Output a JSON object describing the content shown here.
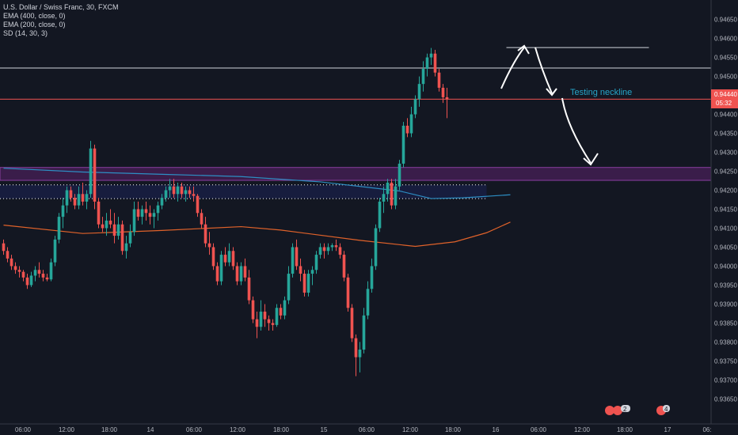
{
  "legend": {
    "symbol": "U.S. Dollar / Swiss Franc, 30, FXCM",
    "ind1": "EMA (400, close, 0)",
    "ind2": "EMA (200, close, 0)",
    "ind3": "SD (14, 30, 3)"
  },
  "colors": {
    "background": "#131722",
    "up": "#26a69a",
    "down": "#ef5350",
    "ema400": "#2d8fc4",
    "ema200": "#e0622a",
    "zone": "#3a1d4a",
    "zone_border": "#8a3fa0",
    "annotation": "#26a6c9"
  },
  "annotation": "Testing neckline",
  "price_label": "0.94440",
  "countdown": "05:32",
  "chart_data": {
    "type": "candlestick",
    "ylim": [
      0.9363,
      0.9467
    ],
    "y_ticks": [
      "0.94650",
      "0.94600",
      "0.94550",
      "0.94500",
      "0.94450",
      "0.94400",
      "0.94350",
      "0.94300",
      "0.94250",
      "0.94200",
      "0.94150",
      "0.94100",
      "0.94050",
      "0.94000",
      "0.93950",
      "0.93900",
      "0.93850",
      "0.93800",
      "0.93750",
      "0.93700",
      "0.93650"
    ],
    "x_ticks": [
      "06:00",
      "12:00",
      "18:00",
      "14",
      "06:00",
      "12:00",
      "18:00",
      "15",
      "06:00",
      "12:00",
      "18:00",
      "16",
      "06:00",
      "12:00",
      "18:00",
      "17",
      "06:"
    ],
    "current_price": 0.9444,
    "horizontal_lines": [
      {
        "y": 0.94576,
        "color": "#d1d4dc",
        "from_bar": 127,
        "to_bar": 163
      },
      {
        "y": 0.94522,
        "color": "#d1d4dc",
        "from_bar": 0,
        "to_bar": 200
      },
      {
        "y": 0.9444,
        "color": "#ef5350",
        "from_bar": 0,
        "to_bar": 200
      }
    ],
    "zone": {
      "y_top": 0.9426,
      "y_bottom": 0.94226
    },
    "dotted_box": {
      "y_top": 0.94214,
      "y_bottom": 0.94178,
      "from_bar": 0,
      "to_bar": 122
    },
    "ema400": [
      [
        0,
        0.94258
      ],
      [
        20,
        0.94248
      ],
      [
        40,
        0.94242
      ],
      [
        60,
        0.94236
      ],
      [
        80,
        0.94222
      ],
      [
        100,
        0.94198
      ],
      [
        108,
        0.94178
      ],
      [
        116,
        0.9418
      ],
      [
        128,
        0.94188
      ]
    ],
    "ema200": [
      [
        0,
        0.94108
      ],
      [
        20,
        0.94086
      ],
      [
        40,
        0.94094
      ],
      [
        60,
        0.94104
      ],
      [
        70,
        0.94095
      ],
      [
        90,
        0.94068
      ],
      [
        104,
        0.94052
      ],
      [
        114,
        0.94064
      ],
      [
        122,
        0.94088
      ],
      [
        128,
        0.94116
      ]
    ],
    "candles": [
      [
        0.9406,
        0.9407,
        0.9403,
        0.9404
      ],
      [
        0.9404,
        0.9405,
        0.9401,
        0.9402
      ],
      [
        0.9402,
        0.9403,
        0.9399,
        0.94
      ],
      [
        0.94,
        0.9401,
        0.9398,
        0.9399
      ],
      [
        0.9399,
        0.94,
        0.9397,
        0.93985
      ],
      [
        0.93985,
        0.9399,
        0.9396,
        0.9397
      ],
      [
        0.9397,
        0.9398,
        0.9394,
        0.9395
      ],
      [
        0.9395,
        0.93985,
        0.93945,
        0.93975
      ],
      [
        0.93975,
        0.94,
        0.9396,
        0.9399
      ],
      [
        0.9399,
        0.9401,
        0.9397,
        0.9398
      ],
      [
        0.9398,
        0.9399,
        0.9396,
        0.9397
      ],
      [
        0.9397,
        0.9398,
        0.9396,
        0.93965
      ],
      [
        0.93965,
        0.9402,
        0.9396,
        0.9401
      ],
      [
        0.9401,
        0.9408,
        0.94,
        0.9407
      ],
      [
        0.9407,
        0.9414,
        0.9406,
        0.9413
      ],
      [
        0.9413,
        0.9418,
        0.941,
        0.9416
      ],
      [
        0.9416,
        0.9421,
        0.9414,
        0.942
      ],
      [
        0.942,
        0.9421,
        0.9417,
        0.9418
      ],
      [
        0.9418,
        0.9419,
        0.9415,
        0.9416
      ],
      [
        0.9416,
        0.9421,
        0.9415,
        0.9419
      ],
      [
        0.9419,
        0.9422,
        0.9416,
        0.9417
      ],
      [
        0.9417,
        0.942,
        0.9415,
        0.9419
      ],
      [
        0.9419,
        0.9433,
        0.9418,
        0.9431
      ],
      [
        0.9431,
        0.9432,
        0.9415,
        0.9417
      ],
      [
        0.9417,
        0.9418,
        0.941,
        0.9411
      ],
      [
        0.9411,
        0.9413,
        0.9409,
        0.941
      ],
      [
        0.941,
        0.9414,
        0.9408,
        0.9412
      ],
      [
        0.9412,
        0.9415,
        0.941,
        0.9411
      ],
      [
        0.9411,
        0.9414,
        0.9406,
        0.9408
      ],
      [
        0.9408,
        0.9413,
        0.9407,
        0.9411
      ],
      [
        0.9411,
        0.9412,
        0.9403,
        0.9404
      ],
      [
        0.9404,
        0.9408,
        0.9402,
        0.9406
      ],
      [
        0.9406,
        0.9411,
        0.9405,
        0.9409
      ],
      [
        0.9409,
        0.9417,
        0.9408,
        0.9415
      ],
      [
        0.9415,
        0.9417,
        0.9412,
        0.9413
      ],
      [
        0.9413,
        0.9416,
        0.9411,
        0.9415
      ],
      [
        0.9415,
        0.9417,
        0.9412,
        0.9414
      ],
      [
        0.9414,
        0.9416,
        0.9411,
        0.9413
      ],
      [
        0.9413,
        0.9415,
        0.941,
        0.9414
      ],
      [
        0.9414,
        0.9417,
        0.9412,
        0.9416
      ],
      [
        0.9416,
        0.9419,
        0.9415,
        0.9418
      ],
      [
        0.9418,
        0.9421,
        0.9417,
        0.942
      ],
      [
        0.942,
        0.9423,
        0.9418,
        0.9421
      ],
      [
        0.9421,
        0.9423,
        0.9418,
        0.9419
      ],
      [
        0.9419,
        0.9422,
        0.9417,
        0.9421
      ],
      [
        0.9421,
        0.9422,
        0.9418,
        0.9419
      ],
      [
        0.9419,
        0.9421,
        0.9417,
        0.942
      ],
      [
        0.942,
        0.9421,
        0.9418,
        0.9419
      ],
      [
        0.9419,
        0.9421,
        0.9417,
        0.94185
      ],
      [
        0.94185,
        0.9419,
        0.9413,
        0.9414
      ],
      [
        0.9414,
        0.9415,
        0.941,
        0.9411
      ],
      [
        0.9411,
        0.9413,
        0.9405,
        0.9406
      ],
      [
        0.9406,
        0.9409,
        0.9403,
        0.9405
      ],
      [
        0.9405,
        0.9406,
        0.9399,
        0.94
      ],
      [
        0.94,
        0.9401,
        0.9395,
        0.9396
      ],
      [
        0.9396,
        0.9404,
        0.9395,
        0.9403
      ],
      [
        0.9403,
        0.9405,
        0.94,
        0.9401
      ],
      [
        0.9401,
        0.9406,
        0.94,
        0.9404
      ],
      [
        0.9404,
        0.9405,
        0.9399,
        0.94
      ],
      [
        0.94,
        0.9401,
        0.9395,
        0.9396
      ],
      [
        0.9396,
        0.9401,
        0.9395,
        0.94
      ],
      [
        0.94,
        0.9402,
        0.9396,
        0.9397
      ],
      [
        0.9397,
        0.9399,
        0.939,
        0.9391
      ],
      [
        0.9391,
        0.9392,
        0.9385,
        0.9386
      ],
      [
        0.9386,
        0.9388,
        0.9381,
        0.9384
      ],
      [
        0.9384,
        0.9391,
        0.9383,
        0.9388
      ],
      [
        0.9388,
        0.939,
        0.9384,
        0.9386
      ],
      [
        0.9386,
        0.9387,
        0.9383,
        0.9385
      ],
      [
        0.9385,
        0.9386,
        0.9383,
        0.93845
      ],
      [
        0.93845,
        0.939,
        0.9384,
        0.9389
      ],
      [
        0.9389,
        0.939,
        0.9386,
        0.9387
      ],
      [
        0.9387,
        0.9392,
        0.9386,
        0.9391
      ],
      [
        0.9391,
        0.94,
        0.939,
        0.9398
      ],
      [
        0.9398,
        0.9406,
        0.9397,
        0.9405
      ],
      [
        0.9405,
        0.9407,
        0.9399,
        0.94
      ],
      [
        0.94,
        0.9402,
        0.9396,
        0.9398
      ],
      [
        0.9398,
        0.9399,
        0.9392,
        0.9393
      ],
      [
        0.9393,
        0.9399,
        0.9392,
        0.9398
      ],
      [
        0.9398,
        0.94,
        0.9395,
        0.9399
      ],
      [
        0.9399,
        0.9404,
        0.9398,
        0.9403
      ],
      [
        0.9403,
        0.9406,
        0.9402,
        0.9405
      ],
      [
        0.9405,
        0.9406,
        0.9402,
        0.9404
      ],
      [
        0.9404,
        0.9406,
        0.9403,
        0.9405
      ],
      [
        0.9405,
        0.9406,
        0.9404,
        0.94055
      ],
      [
        0.94055,
        0.9407,
        0.9404,
        0.9405
      ],
      [
        0.9405,
        0.9406,
        0.9402,
        0.9403
      ],
      [
        0.9403,
        0.9404,
        0.9396,
        0.9397
      ],
      [
        0.9397,
        0.9398,
        0.9388,
        0.9389
      ],
      [
        0.9389,
        0.939,
        0.938,
        0.9381
      ],
      [
        0.9381,
        0.9382,
        0.9371,
        0.9376
      ],
      [
        0.9376,
        0.938,
        0.9372,
        0.9378
      ],
      [
        0.9378,
        0.9389,
        0.9377,
        0.9387
      ],
      [
        0.9387,
        0.9396,
        0.9386,
        0.9394
      ],
      [
        0.9394,
        0.9402,
        0.9393,
        0.94
      ],
      [
        0.94,
        0.9411,
        0.9399,
        0.941
      ],
      [
        0.941,
        0.9418,
        0.9409,
        0.9417
      ],
      [
        0.9417,
        0.9421,
        0.9414,
        0.9419
      ],
      [
        0.9419,
        0.9423,
        0.9417,
        0.9422
      ],
      [
        0.9422,
        0.9423,
        0.9415,
        0.9416
      ],
      [
        0.9416,
        0.9423,
        0.9415,
        0.9421
      ],
      [
        0.9421,
        0.9428,
        0.942,
        0.9427
      ],
      [
        0.9427,
        0.9438,
        0.9426,
        0.9437
      ],
      [
        0.9437,
        0.9439,
        0.9434,
        0.9435
      ],
      [
        0.9435,
        0.9442,
        0.9434,
        0.944
      ],
      [
        0.944,
        0.9445,
        0.9439,
        0.9444
      ],
      [
        0.9444,
        0.945,
        0.9442,
        0.9448
      ],
      [
        0.9448,
        0.9454,
        0.9446,
        0.9452
      ],
      [
        0.9452,
        0.9456,
        0.945,
        0.9455
      ],
      [
        0.9455,
        0.94575,
        0.9453,
        0.9456
      ],
      [
        0.9456,
        0.9457,
        0.945,
        0.9451
      ],
      [
        0.9451,
        0.9452,
        0.9446,
        0.9447
      ],
      [
        0.9447,
        0.9448,
        0.9443,
        0.94445
      ],
      [
        0.94445,
        0.9447,
        0.9439,
        0.9444
      ]
    ]
  },
  "events": [
    "2",
    "4"
  ]
}
